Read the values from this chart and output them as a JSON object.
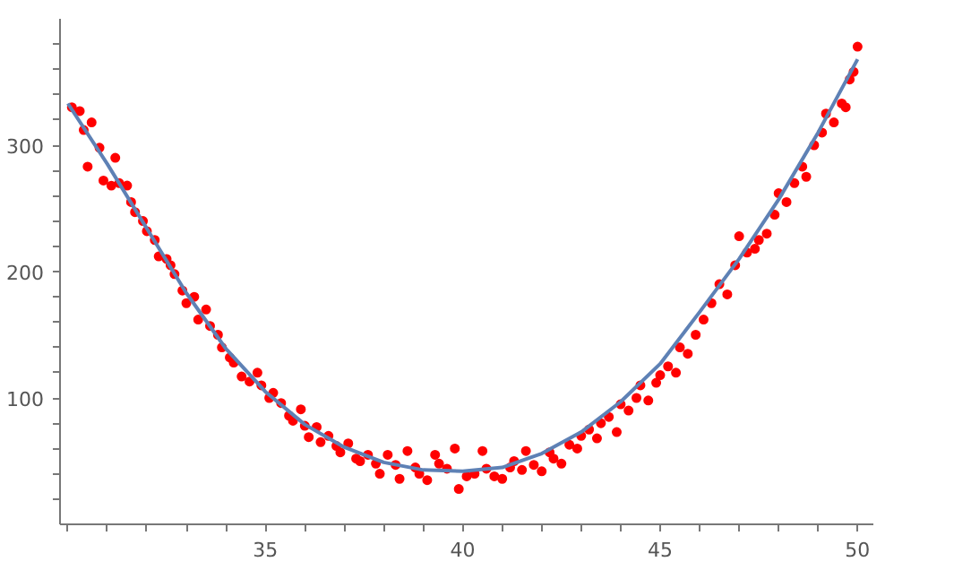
{
  "chart_data": {
    "type": "scatter",
    "grid": false,
    "xlim": [
      29.8,
      50.4
    ],
    "ylim": [
      0,
      400
    ],
    "xticks": [
      {
        "value": 30,
        "label": null
      },
      {
        "value": 31,
        "label": null
      },
      {
        "value": 32,
        "label": null
      },
      {
        "value": 33,
        "label": null
      },
      {
        "value": 34,
        "label": null
      },
      35,
      {
        "value": 36,
        "label": null
      },
      {
        "value": 37,
        "label": null
      },
      {
        "value": 38,
        "label": null
      },
      {
        "value": 39,
        "label": null
      },
      40,
      {
        "value": 41,
        "label": null
      },
      {
        "value": 42,
        "label": null
      },
      {
        "value": 43,
        "label": null
      },
      {
        "value": 44,
        "label": null
      },
      45,
      {
        "value": 46,
        "label": null
      },
      {
        "value": 47,
        "label": null
      },
      {
        "value": 48,
        "label": null
      },
      {
        "value": 49,
        "label": null
      },
      50
    ],
    "yticks": [
      {
        "value": 20,
        "label": null
      },
      {
        "value": 40,
        "label": null
      },
      {
        "value": 60,
        "label": null
      },
      {
        "value": 80,
        "label": null
      },
      100,
      {
        "value": 120,
        "label": null
      },
      {
        "value": 140,
        "label": null
      },
      {
        "value": 160,
        "label": null
      },
      {
        "value": 180,
        "label": null
      },
      200,
      {
        "value": 220,
        "label": null
      },
      {
        "value": 240,
        "label": null
      },
      {
        "value": 260,
        "label": null
      },
      {
        "value": 280,
        "label": null
      },
      300,
      {
        "value": 320,
        "label": null
      },
      {
        "value": 340,
        "label": null
      },
      {
        "value": 360,
        "label": null
      },
      {
        "value": 380,
        "label": null
      }
    ],
    "series": [
      {
        "color": "#ff0000",
        "marker": "circle",
        "x": [
          30.1,
          30.3,
          30.4,
          30.5,
          30.6,
          30.8,
          30.9,
          31.1,
          31.2,
          31.3,
          31.5,
          31.6,
          31.7,
          31.9,
          32.0,
          32.2,
          32.3,
          32.5,
          32.6,
          32.7,
          32.9,
          33.0,
          33.2,
          33.3,
          33.5,
          33.6,
          33.8,
          33.9,
          34.1,
          34.2,
          34.4,
          34.6,
          34.8,
          34.9,
          35.1,
          35.2,
          35.4,
          35.6,
          35.7,
          35.9,
          36.0,
          36.1,
          36.3,
          36.4,
          36.6,
          36.8,
          36.9,
          37.1,
          37.3,
          37.4,
          37.6,
          37.8,
          37.9,
          38.1,
          38.3,
          38.4,
          38.6,
          38.8,
          38.9,
          39.1,
          39.3,
          39.4,
          39.6,
          39.8,
          39.9,
          40.1,
          40.3,
          40.5,
          40.6,
          40.8,
          41.0,
          41.2,
          41.3,
          41.5,
          41.6,
          41.8,
          42.0,
          42.2,
          42.3,
          42.5,
          42.7,
          42.9,
          43.0,
          43.2,
          43.4,
          43.5,
          43.7,
          43.9,
          44.0,
          44.2,
          44.4,
          44.5,
          44.7,
          44.9,
          45.0,
          45.2,
          45.4,
          45.5,
          45.7,
          45.9,
          46.1,
          46.3,
          46.5,
          46.7,
          46.9,
          47.0,
          47.2,
          47.4,
          47.5,
          47.7,
          47.9,
          48.0,
          48.2,
          48.4,
          48.6,
          48.7,
          48.9,
          49.1,
          49.2,
          49.4,
          49.6,
          49.7,
          49.8,
          49.9,
          50.0
        ],
        "values": [
          330,
          327,
          312,
          283,
          318,
          298,
          272,
          268,
          290,
          270,
          268,
          255,
          247,
          240,
          232,
          225,
          212,
          210,
          205,
          198,
          185,
          175,
          180,
          162,
          170,
          157,
          150,
          140,
          132,
          128,
          117,
          113,
          120,
          110,
          100,
          104,
          96,
          86,
          82,
          91,
          78,
          69,
          77,
          65,
          70,
          62,
          57,
          64,
          52,
          50,
          55,
          48,
          40,
          55,
          47,
          36,
          58,
          45,
          40,
          35,
          55,
          48,
          44,
          60,
          28,
          38,
          40,
          58,
          44,
          38,
          36,
          45,
          50,
          43,
          58,
          47,
          42,
          57,
          52,
          48,
          63,
          60,
          70,
          75,
          68,
          80,
          85,
          73,
          95,
          90,
          100,
          110,
          98,
          112,
          118,
          125,
          120,
          140,
          135,
          150,
          162,
          175,
          190,
          182,
          205,
          228,
          215,
          218,
          225,
          230,
          245,
          262,
          255,
          270,
          283,
          275,
          300,
          310,
          325,
          318,
          333,
          330,
          352,
          358,
          378
        ]
      },
      {
        "type": "line",
        "color": "#5e81b5",
        "marker": "none",
        "x": [
          30,
          31,
          32,
          33,
          34,
          35,
          36,
          37,
          38,
          39,
          40,
          41,
          42,
          43,
          44,
          45,
          46,
          47,
          48,
          49,
          50
        ],
        "values": [
          333,
          285,
          234,
          183,
          139,
          105,
          79,
          61,
          49,
          43,
          42,
          45,
          56,
          73,
          97,
          127,
          168,
          210,
          257,
          310,
          368
        ]
      }
    ]
  }
}
